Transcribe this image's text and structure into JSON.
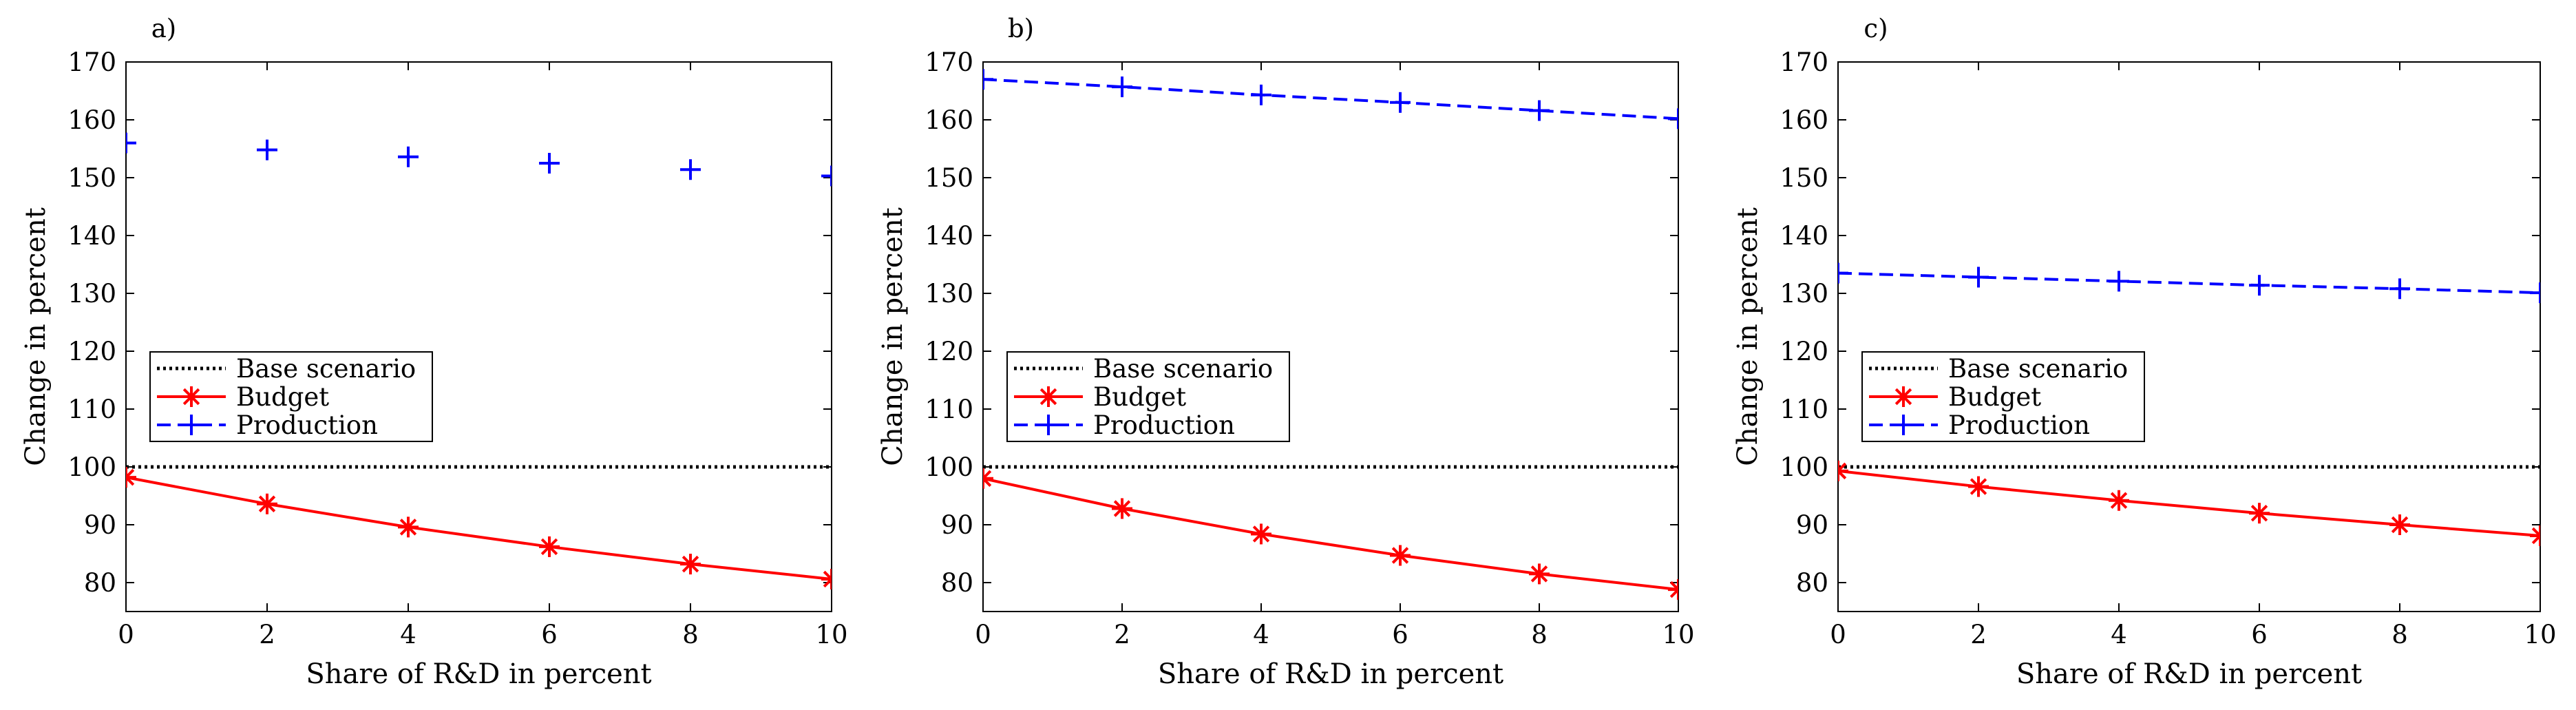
{
  "chart_data": [
    {
      "type": "line",
      "panel_label": "a)",
      "xlabel": "Share of R&D in percent",
      "ylabel": "Change in percent",
      "xlim": [
        0,
        10
      ],
      "ylim": [
        75,
        170
      ],
      "xticks": [
        0,
        2,
        4,
        6,
        8,
        10
      ],
      "yticks": [
        80,
        90,
        100,
        110,
        120,
        130,
        140,
        150,
        160,
        170
      ],
      "x": [
        0,
        2,
        4,
        6,
        8,
        10
      ],
      "series": [
        {
          "name": "Base scenario",
          "style": "dotted",
          "marker": "none",
          "color": "#000000",
          "values": [
            100,
            100,
            100,
            100,
            100,
            100
          ]
        },
        {
          "name": "Budget",
          "style": "solid",
          "marker": "star",
          "color": "#ff0000",
          "values": [
            98.2,
            93.6,
            89.6,
            86.2,
            83.2,
            80.6
          ]
        },
        {
          "name": "Production",
          "style": "none",
          "marker": "plus",
          "color": "#0000ff",
          "values": [
            156,
            154.8,
            153.6,
            152.5,
            151.4,
            150.3
          ]
        }
      ],
      "legend": {
        "position": "center-left",
        "entries": [
          "Base scenario",
          "Budget",
          "Production"
        ]
      }
    },
    {
      "type": "line",
      "panel_label": "b)",
      "xlabel": "Share of R&D in percent",
      "ylabel": "Change in percent",
      "xlim": [
        0,
        10
      ],
      "ylim": [
        75,
        170
      ],
      "xticks": [
        0,
        2,
        4,
        6,
        8,
        10
      ],
      "yticks": [
        80,
        90,
        100,
        110,
        120,
        130,
        140,
        150,
        160,
        170
      ],
      "x": [
        0,
        2,
        4,
        6,
        8,
        10
      ],
      "series": [
        {
          "name": "Base scenario",
          "style": "dotted",
          "marker": "none",
          "color": "#000000",
          "values": [
            100,
            100,
            100,
            100,
            100,
            100
          ]
        },
        {
          "name": "Budget",
          "style": "solid",
          "marker": "star",
          "color": "#ff0000",
          "values": [
            98,
            92.8,
            88.4,
            84.7,
            81.5,
            78.8
          ]
        },
        {
          "name": "Production",
          "style": "dashed",
          "marker": "plus",
          "color": "#0000ff",
          "values": [
            167,
            165.7,
            164.3,
            163,
            161.6,
            160.2
          ]
        }
      ],
      "legend": {
        "position": "center-left",
        "entries": [
          "Base scenario",
          "Budget",
          "Production"
        ]
      }
    },
    {
      "type": "line",
      "panel_label": "c)",
      "xlabel": "Share of R&D in percent",
      "ylabel": "Change in percent",
      "xlim": [
        0,
        10
      ],
      "ylim": [
        75,
        170
      ],
      "xticks": [
        0,
        2,
        4,
        6,
        8,
        10
      ],
      "yticks": [
        80,
        90,
        100,
        110,
        120,
        130,
        140,
        150,
        160,
        170
      ],
      "x": [
        0,
        2,
        4,
        6,
        8,
        10
      ],
      "series": [
        {
          "name": "Base scenario",
          "style": "dotted",
          "marker": "none",
          "color": "#000000",
          "values": [
            100,
            100,
            100,
            100,
            100,
            100
          ]
        },
        {
          "name": "Budget",
          "style": "solid",
          "marker": "star",
          "color": "#ff0000",
          "values": [
            99.3,
            96.6,
            94.2,
            92,
            90,
            88.1
          ]
        },
        {
          "name": "Production",
          "style": "dashed",
          "marker": "plus",
          "color": "#0000ff",
          "values": [
            133.5,
            132.8,
            132.1,
            131.4,
            130.8,
            130.1
          ]
        }
      ],
      "legend": {
        "position": "center-left",
        "entries": [
          "Base scenario",
          "Budget",
          "Production"
        ]
      }
    }
  ]
}
